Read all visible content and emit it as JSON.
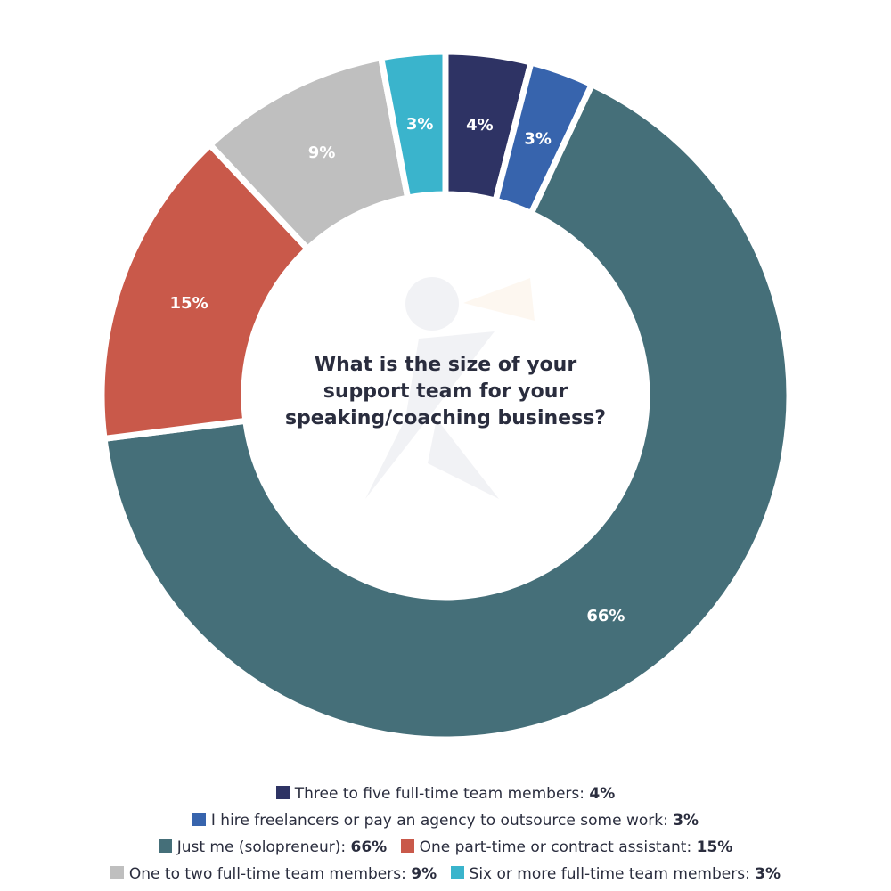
{
  "chart_data": {
    "type": "pie",
    "style": "donut",
    "title": "What is the size of your support team for your speaking/coaching business?",
    "legend_position": "bottom",
    "series": [
      {
        "label": "Three to five full-time team members",
        "value": 4,
        "display": "4%",
        "color": "#2e3364"
      },
      {
        "label": "I hire freelancers or pay an agency to outsource some work",
        "value": 3,
        "display": "3%",
        "color": "#3764ad"
      },
      {
        "label": "Just me (solopreneur)",
        "value": 66,
        "display": "66%",
        "color": "#456f79"
      },
      {
        "label": "One part-time or contract assistant",
        "value": 15,
        "display": "15%",
        "color": "#c9594a"
      },
      {
        "label": "One to two full-time team members",
        "value": 9,
        "display": "9%",
        "color": "#bfbfbf"
      },
      {
        "label": "Six or more full-time team members",
        "value": 3,
        "display": "3%",
        "color": "#3ab4cc"
      }
    ]
  },
  "legend_separator": ": "
}
